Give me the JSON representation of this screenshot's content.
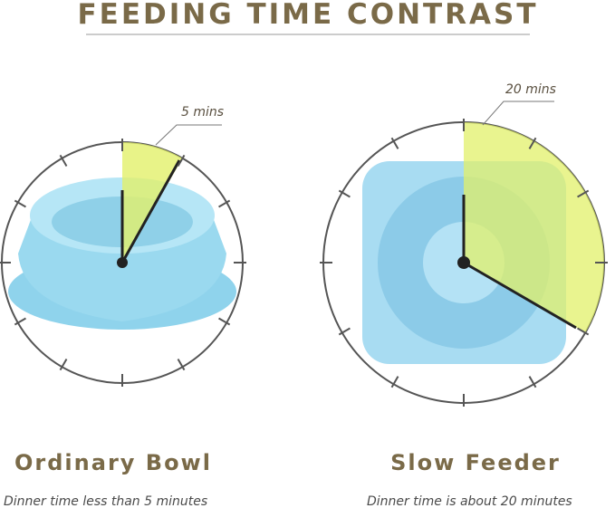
{
  "header": {
    "title": "FEEDING TIME CONTRAST"
  },
  "left": {
    "time_label": "5 mins",
    "name": "Ordinary Bowl",
    "caption": "Dinner time less than 5 minutes"
  },
  "right": {
    "time_label": "20 mins",
    "name": "Slow Feeder",
    "caption": "Dinner time is about 20 minutes"
  }
}
